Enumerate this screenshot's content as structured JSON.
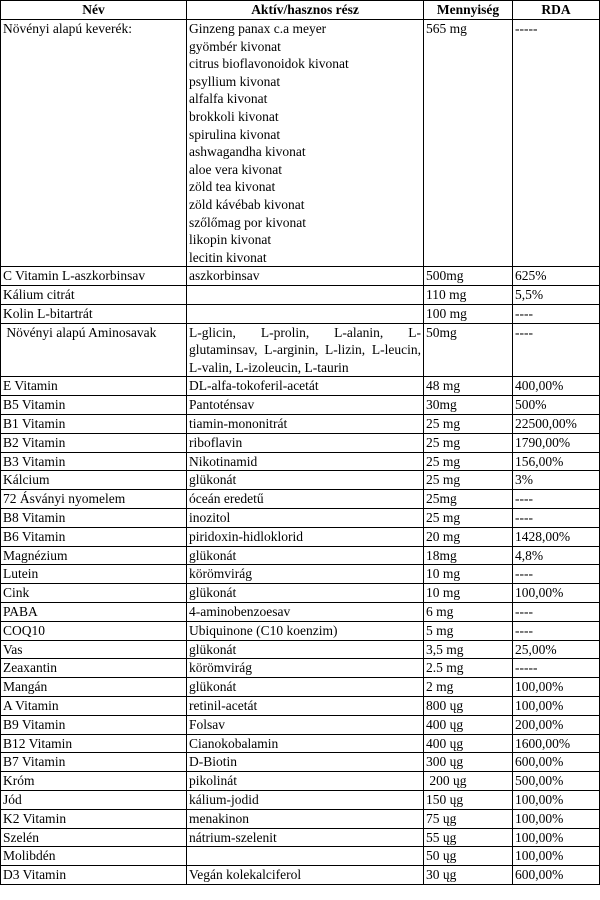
{
  "table": {
    "header": [
      "Név",
      "Aktív/hasznos rész",
      "Mennyiség",
      "RDA"
    ],
    "rows": [
      [
        "Növényi alapú keverék:",
        [
          "Ginzeng panax c.a meyer",
          "gyömbér kivonat",
          "citrus bioflavonoidok kivonat",
          "psyllium kivonat",
          "alfalfa kivonat",
          "brokkoli kivonat",
          "spirulina kivonat",
          "ashwagandha kivonat",
          "aloe vera kivonat",
          "zöld tea kivonat",
          "zöld kávébab kivonat",
          "szőlőmag por kivonat",
          "likopin kivonat",
          "lecitin kivonat"
        ],
        "565 mg",
        "-----"
      ],
      [
        "C Vitamin L-aszkorbinsav",
        "aszkorbinsav",
        "500mg",
        "625%"
      ],
      [
        "Kálium citrát",
        null,
        "110 mg",
        "5,5%"
      ],
      [
        "Kolin L-bitartrát",
        null,
        "100 mg",
        "----"
      ],
      [
        " Növényi alapú Aminosavak",
        "L-glicin, L-prolin, L-alanin, L-glutaminsav, L-arginin, L-lizin, L-leucin, L-valin, L-izoleucin, L-taurin",
        "50mg",
        "----"
      ],
      [
        "E Vitamin",
        "DL-alfa-tokoferil-acetát",
        "48 mg",
        "400,00%"
      ],
      [
        "B5 Vitamin",
        "Pantoténsav",
        "30mg",
        "500%"
      ],
      [
        "B1 Vitamin",
        "tiamin-mononitrát",
        "25 mg",
        "22500,00%"
      ],
      [
        "B2 Vitamin",
        "riboflavin",
        "25 mg",
        "1790,00%"
      ],
      [
        "B3 Vitamin",
        "Nikotinamid",
        "25 mg",
        "156,00%"
      ],
      [
        "Kálcium",
        "glükonát",
        "25 mg",
        "3%"
      ],
      [
        "72 Ásványi nyomelem",
        "óceán eredetű",
        "25mg",
        "----"
      ],
      [
        "B8 Vitamin",
        "inozitol",
        "25 mg",
        "----"
      ],
      [
        "B6 Vitamin",
        "piridoxin-hidloklorid",
        "20 mg",
        "1428,00%"
      ],
      [
        "Magnézium",
        "glükonát",
        "18mg",
        "4,8%"
      ],
      [
        "Lutein",
        "körömvirág",
        "10 mg",
        "----"
      ],
      [
        "Cink",
        "glükonát",
        "10 mg",
        "100,00%"
      ],
      [
        "PABA",
        "4-aminobenzoesav",
        "6 mg",
        "----"
      ],
      [
        "COQ10",
        "Ubiquinone (C10 koenzim)",
        "5 mg",
        "----"
      ],
      [
        "Vas",
        "glükonát",
        "3,5 mg",
        "25,00%"
      ],
      [
        "Zeaxantin",
        "körömvirág",
        "2.5 mg",
        "-----"
      ],
      [
        "Mangán",
        "glükonát",
        "2 mg",
        "100,00%"
      ],
      [
        "A Vitamin",
        "retinil-acetát",
        "800 ųg",
        "100,00%"
      ],
      [
        "B9 Vitamin",
        "Folsav",
        "400 ųg",
        "200,00%"
      ],
      [
        "B12 Vitamin",
        "Cianokobalamin",
        "400 ųg",
        "1600,00%"
      ],
      [
        "B7 Vitamin",
        "D-Biotin",
        "300 ųg",
        "600,00%"
      ],
      [
        "Króm",
        "pikolinát",
        " 200 ųg",
        "500,00%"
      ],
      [
        "Jód",
        "kálium-jodid",
        "150 ųg",
        "100,00%"
      ],
      [
        "K2 Vitamin",
        "menakinon",
        "75 ųg",
        "100,00%"
      ],
      [
        "Szelén",
        "nátrium-szelenit",
        "55 ųg",
        "100,00%"
      ],
      [
        "Molibdén",
        null,
        "50 ųg",
        "100,00%"
      ],
      [
        "D3 Vitamin",
        "Vegán kolekalciferol",
        "30 ųg",
        "600,00%"
      ]
    ]
  }
}
